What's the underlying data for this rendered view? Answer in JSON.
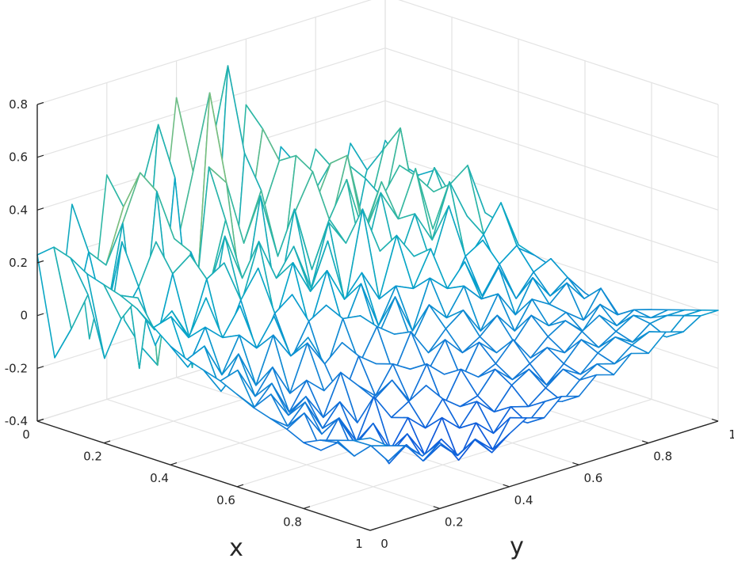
{
  "chart_data": {
    "type": "mesh3d",
    "xlabel": "x",
    "ylabel": "y",
    "zlabel": "",
    "xlim": [
      0,
      1
    ],
    "ylim": [
      0,
      1
    ],
    "zlim": [
      -0.4,
      0.8
    ],
    "x_ticks": [
      "0",
      "0.2",
      "0.4",
      "0.6",
      "0.8",
      "1"
    ],
    "y_ticks": [
      "0",
      "0.2",
      "0.4",
      "0.6",
      "0.8",
      "1"
    ],
    "z_ticks": [
      "-0.4",
      "-0.2",
      "0",
      "0.2",
      "0.4",
      "0.6",
      "0.8"
    ],
    "grid": true,
    "colormap": "parula",
    "colormap_stops": [
      "#352a87",
      "#0f5cdd",
      "#1481d6",
      "#06a4ca",
      "#2eb7a4",
      "#87bf77",
      "#d1bb59",
      "#fec832",
      "#f9fb0e"
    ],
    "mesh_x": [
      0,
      0.05,
      0.1,
      0.15,
      0.2,
      0.25,
      0.3,
      0.35,
      0.4,
      0.45,
      0.5,
      0.55,
      0.6,
      0.65,
      0.7,
      0.75,
      0.8,
      0.85,
      0.9,
      0.95,
      1
    ],
    "mesh_y": [
      0,
      0.05,
      0.1,
      0.15,
      0.2,
      0.25,
      0.3,
      0.35,
      0.4,
      0.45,
      0.5,
      0.55,
      0.6,
      0.65,
      0.7,
      0.75,
      0.8,
      0.85,
      0.9,
      0.95,
      1
    ],
    "z_description_note": "",
    "z": [
      [
        0.23,
        -0.18,
        0.38,
        -0.15,
        0.45,
        -0.12,
        0.36,
        0.05,
        0.66,
        -0.14,
        0.42,
        -0.28,
        0.55,
        -0.1,
        0.35,
        0.08,
        0.3,
        -0.05,
        0.28,
        0.02,
        0.25
      ],
      [
        0.28,
        -0.05,
        0.22,
        0.15,
        0.35,
        -0.2,
        0.62,
        0.12,
        0.4,
        -0.3,
        0.76,
        0.05,
        0.48,
        -0.2,
        0.3,
        0.12,
        0.25,
        -0.02,
        0.2,
        0.04,
        0.18
      ],
      [
        0.26,
        0.1,
        -0.02,
        0.33,
        0.5,
        -0.25,
        0.44,
        -0.3,
        0.72,
        -0.38,
        0.45,
        0.2,
        0.38,
        -0.1,
        0.22,
        0.18,
        0.28,
        0.05,
        0.3,
        -0.06,
        0.16
      ],
      [
        0.22,
        -0.12,
        0.3,
        -0.2,
        0.45,
        0.25,
        -0.15,
        0.48,
        0.4,
        0.15,
        0.33,
        -0.12,
        0.42,
        0.2,
        0.35,
        -0.05,
        0.25,
        0.1,
        0.4,
        0.05,
        0.2
      ],
      [
        0.2,
        0.05,
        0.15,
        0.3,
        -0.1,
        0.22,
        0.05,
        0.3,
        -0.05,
        0.35,
        0.1,
        0.25,
        0.38,
        0.15,
        0.4,
        0.1,
        0.2,
        0.3,
        0.1,
        0.25,
        0.12
      ],
      [
        0.18,
        0.15,
        -0.05,
        0.2,
        0.25,
        -0.08,
        0.28,
        0.1,
        0.2,
        -0.05,
        0.3,
        0.05,
        0.22,
        0.35,
        0.12,
        0.3,
        0.05,
        0.28,
        0.2,
        0.1,
        0.15
      ],
      [
        0.15,
        0.05,
        0.1,
        -0.02,
        0.18,
        0.22,
        0.05,
        0.26,
        0.1,
        0.2,
        0.02,
        0.25,
        0.15,
        0.05,
        0.3,
        0.18,
        0.35,
        0.1,
        0.25,
        0.3,
        0.1
      ],
      [
        0.1,
        0.12,
        0.02,
        0.15,
        -0.05,
        0.1,
        0.2,
        -0.02,
        0.18,
        0.05,
        0.22,
        -0.04,
        0.3,
        0.12,
        0.05,
        0.22,
        0.1,
        0.3,
        0.15,
        0.05,
        0.08
      ],
      [
        0.05,
        -0.05,
        0.08,
        0.02,
        0.12,
        -0.08,
        0.05,
        0.1,
        -0.05,
        0.15,
        0.02,
        0.1,
        -0.02,
        0.2,
        0.1,
        0.05,
        0.25,
        0.02,
        0.1,
        0.2,
        0.02
      ],
      [
        0.02,
        0.05,
        -0.08,
        0.05,
        -0.02,
        0.08,
        -0.1,
        0.02,
        0.06,
        -0.05,
        0.1,
        -0.08,
        0.05,
        0.02,
        0.15,
        -0.05,
        0.08,
        0.12,
        -0.03,
        0.05,
        0.0
      ],
      [
        0.0,
        -0.1,
        0.02,
        -0.12,
        0.05,
        -0.05,
        0.0,
        -0.15,
        0.03,
        0.02,
        -0.08,
        0.05,
        -0.1,
        0.08,
        0.02,
        0.1,
        -0.05,
        0.05,
        0.1,
        -0.08,
        -0.02
      ],
      [
        -0.02,
        0.0,
        -0.12,
        -0.03,
        -0.15,
        0.02,
        -0.08,
        -0.02,
        -0.12,
        0.0,
        -0.05,
        -0.1,
        0.02,
        -0.05,
        0.05,
        -0.02,
        0.08,
        -0.06,
        0.02,
        0.05,
        -0.05
      ],
      [
        -0.05,
        -0.12,
        -0.05,
        -0.18,
        -0.08,
        -0.14,
        -0.2,
        -0.05,
        -0.1,
        -0.16,
        -0.02,
        -0.12,
        -0.05,
        0.0,
        -0.1,
        0.02,
        -0.08,
        0.04,
        -0.05,
        0.0,
        -0.08
      ],
      [
        -0.08,
        -0.05,
        -0.15,
        -0.1,
        -0.2,
        -0.05,
        -0.12,
        -0.18,
        -0.08,
        -0.12,
        -0.15,
        -0.05,
        -0.12,
        -0.08,
        -0.02,
        -0.1,
        0.0,
        -0.04,
        0.02,
        -0.06,
        -0.1
      ],
      [
        -0.1,
        -0.15,
        -0.08,
        -0.2,
        -0.12,
        -0.22,
        -0.15,
        -0.1,
        -0.2,
        -0.08,
        -0.14,
        -0.18,
        -0.06,
        -0.12,
        -0.1,
        -0.02,
        -0.08,
        -0.05,
        -0.1,
        0.0,
        -0.12
      ],
      [
        -0.12,
        -0.08,
        -0.18,
        -0.14,
        -0.25,
        -0.1,
        -0.2,
        -0.16,
        -0.12,
        -0.22,
        -0.1,
        -0.15,
        -0.12,
        -0.05,
        -0.14,
        -0.08,
        -0.04,
        -0.1,
        -0.02,
        -0.08,
        -0.1
      ],
      [
        -0.15,
        -0.2,
        -0.1,
        -0.22,
        -0.16,
        -0.28,
        -0.18,
        -0.24,
        -0.15,
        -0.2,
        -0.18,
        -0.1,
        -0.16,
        -0.12,
        -0.08,
        -0.12,
        -0.06,
        -0.02,
        -0.08,
        -0.04,
        -0.06
      ],
      [
        -0.12,
        -0.15,
        -0.22,
        -0.18,
        -0.26,
        -0.2,
        -0.3,
        -0.18,
        -0.24,
        -0.16,
        -0.22,
        -0.14,
        -0.1,
        -0.18,
        -0.12,
        -0.05,
        -0.1,
        -0.06,
        -0.02,
        -0.05,
        -0.04
      ],
      [
        -0.1,
        -0.18,
        -0.14,
        -0.25,
        -0.2,
        -0.28,
        -0.22,
        -0.32,
        -0.2,
        -0.26,
        -0.18,
        -0.2,
        -0.15,
        -0.1,
        -0.14,
        -0.08,
        -0.04,
        -0.08,
        -0.03,
        -0.02,
        -0.02
      ],
      [
        -0.08,
        -0.12,
        -0.2,
        -0.16,
        -0.24,
        -0.2,
        -0.26,
        -0.22,
        -0.28,
        -0.18,
        -0.22,
        -0.16,
        -0.18,
        -0.12,
        -0.08,
        -0.1,
        -0.05,
        -0.02,
        -0.06,
        0.0,
        0.0
      ],
      [
        -0.05,
        -0.1,
        -0.12,
        -0.18,
        -0.15,
        -0.22,
        -0.18,
        -0.25,
        -0.2,
        -0.16,
        -0.18,
        -0.12,
        -0.14,
        -0.08,
        -0.1,
        -0.04,
        -0.06,
        0.0,
        -0.02,
        0.02,
        0.02
      ]
    ]
  }
}
